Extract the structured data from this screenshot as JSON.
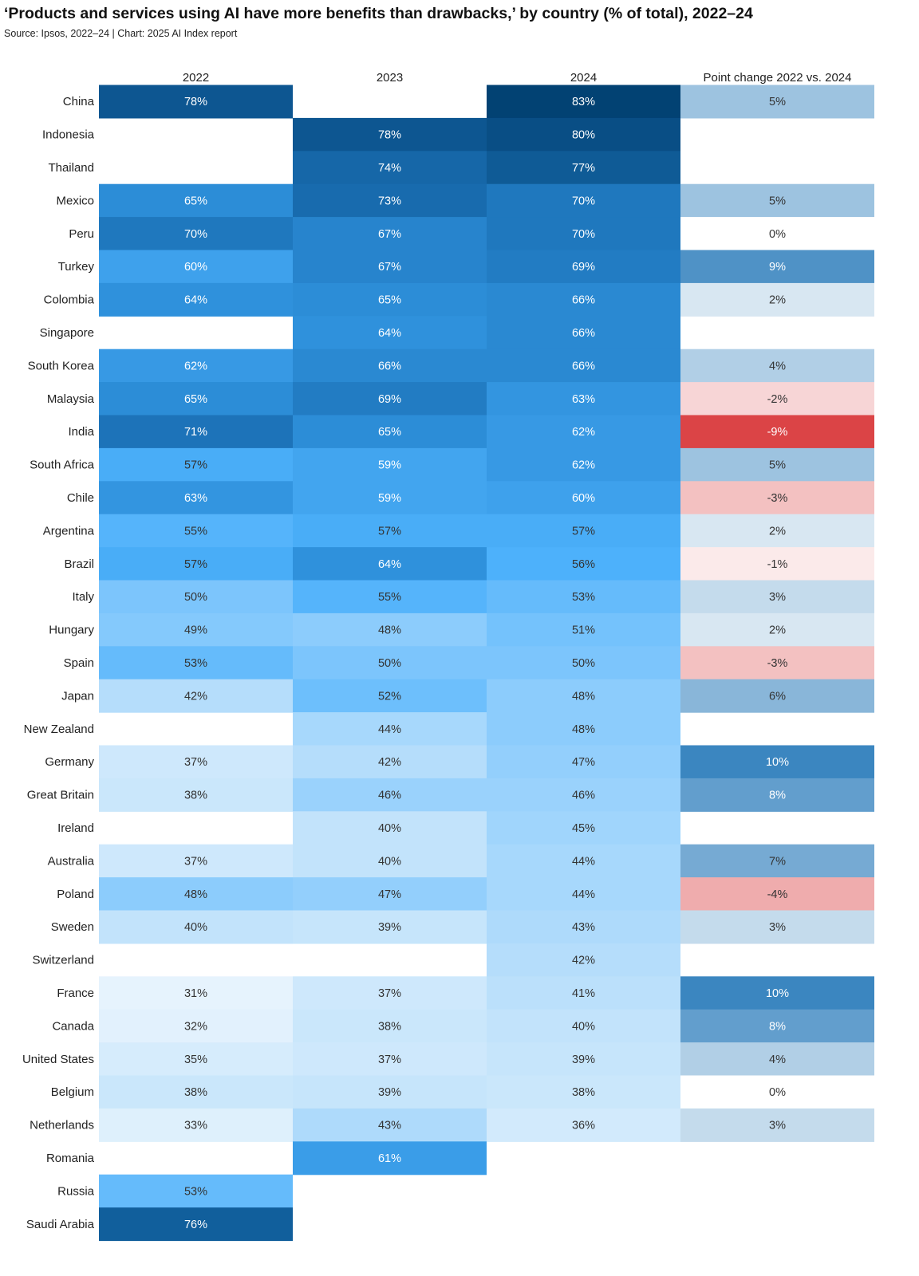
{
  "chart_data": {
    "type": "heatmap",
    "title": "‘Products and services using AI have more benefits than drawbacks,’ by country (% of total), 2022–24",
    "subtitle": "Source: Ipsos, 2022–24 | Chart: 2025 AI Index report",
    "columns": [
      "2022",
      "2023",
      "2024",
      "Point change 2022 vs. 2024"
    ],
    "value_suffix": "%",
    "rows": [
      {
        "country": "China",
        "values": [
          78,
          null,
          83,
          5
        ]
      },
      {
        "country": "Indonesia",
        "values": [
          null,
          78,
          80,
          null
        ]
      },
      {
        "country": "Thailand",
        "values": [
          null,
          74,
          77,
          null
        ]
      },
      {
        "country": "Mexico",
        "values": [
          65,
          73,
          70,
          5
        ]
      },
      {
        "country": "Peru",
        "values": [
          70,
          67,
          70,
          0
        ]
      },
      {
        "country": "Turkey",
        "values": [
          60,
          67,
          69,
          9
        ]
      },
      {
        "country": "Colombia",
        "values": [
          64,
          65,
          66,
          2
        ]
      },
      {
        "country": "Singapore",
        "values": [
          null,
          64,
          66,
          null
        ]
      },
      {
        "country": "South Korea",
        "values": [
          62,
          66,
          66,
          4
        ]
      },
      {
        "country": "Malaysia",
        "values": [
          65,
          69,
          63,
          -2
        ]
      },
      {
        "country": "India",
        "values": [
          71,
          65,
          62,
          -9
        ]
      },
      {
        "country": "South Africa",
        "values": [
          57,
          59,
          62,
          5
        ]
      },
      {
        "country": "Chile",
        "values": [
          63,
          59,
          60,
          -3
        ]
      },
      {
        "country": "Argentina",
        "values": [
          55,
          57,
          57,
          2
        ]
      },
      {
        "country": "Brazil",
        "values": [
          57,
          64,
          56,
          -1
        ]
      },
      {
        "country": "Italy",
        "values": [
          50,
          55,
          53,
          3
        ]
      },
      {
        "country": "Hungary",
        "values": [
          49,
          48,
          51,
          2
        ]
      },
      {
        "country": "Spain",
        "values": [
          53,
          50,
          50,
          -3
        ]
      },
      {
        "country": "Japan",
        "values": [
          42,
          52,
          48,
          6
        ]
      },
      {
        "country": "New Zealand",
        "values": [
          null,
          44,
          48,
          null
        ]
      },
      {
        "country": "Germany",
        "values": [
          37,
          42,
          47,
          10
        ]
      },
      {
        "country": "Great Britain",
        "values": [
          38,
          46,
          46,
          8
        ]
      },
      {
        "country": "Ireland",
        "values": [
          null,
          40,
          45,
          null
        ]
      },
      {
        "country": "Australia",
        "values": [
          37,
          40,
          44,
          7
        ]
      },
      {
        "country": "Poland",
        "values": [
          48,
          47,
          44,
          -4
        ]
      },
      {
        "country": "Sweden",
        "values": [
          40,
          39,
          43,
          3
        ]
      },
      {
        "country": "Switzerland",
        "values": [
          null,
          null,
          42,
          null
        ]
      },
      {
        "country": "France",
        "values": [
          31,
          37,
          41,
          10
        ]
      },
      {
        "country": "Canada",
        "values": [
          32,
          38,
          40,
          8
        ]
      },
      {
        "country": "United States",
        "values": [
          35,
          37,
          39,
          4
        ]
      },
      {
        "country": "Belgium",
        "values": [
          38,
          39,
          38,
          0
        ]
      },
      {
        "country": "Netherlands",
        "values": [
          33,
          43,
          36,
          3
        ]
      },
      {
        "country": "Romania",
        "values": [
          null,
          61,
          null,
          null
        ]
      },
      {
        "country": "Russia",
        "values": [
          53,
          null,
          null,
          null
        ]
      },
      {
        "country": "Saudi Arabia",
        "values": [
          76,
          null,
          null,
          null
        ]
      }
    ],
    "colors": {
      "percent_scale": [
        "#eaf5fd",
        "#c2e3fb",
        "#8cccfc",
        "#4db1fb",
        "#2f91dc",
        "#1a6fb4",
        "#024273"
      ],
      "percent_stops": [
        30,
        40,
        48,
        56,
        64,
        72,
        83
      ],
      "positive_change": "#3b86c0",
      "negative_change": "#db4446",
      "text_dark": "#333333",
      "text_light": "#ffffff"
    }
  }
}
